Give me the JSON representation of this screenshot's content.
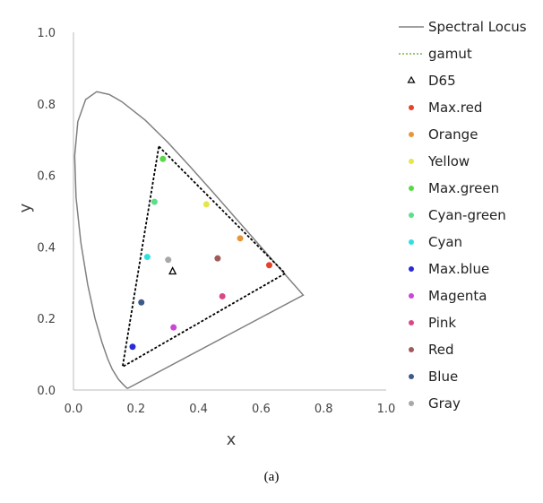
{
  "chart_data": {
    "type": "scatter",
    "xlabel": "x",
    "ylabel": "y",
    "xlim": [
      0,
      1.0
    ],
    "ylim": [
      0,
      1.0
    ],
    "xticks": [
      "0.0",
      "0.2",
      "0.4",
      "0.6",
      "0.8",
      "1.0"
    ],
    "yticks": [
      "0.0",
      "0.2",
      "0.4",
      "0.6",
      "0.8",
      "1.0"
    ],
    "grid": false,
    "legend_placement": "right",
    "caption": "(a)",
    "spectral_locus": {
      "name": "Spectral Locus",
      "color": "#808080",
      "points": [
        [
          0.1741,
          0.005
        ],
        [
          0.1714,
          0.0051
        ],
        [
          0.1644,
          0.0109
        ],
        [
          0.1566,
          0.0177
        ],
        [
          0.144,
          0.0297
        ],
        [
          0.1241,
          0.0578
        ],
        [
          0.1096,
          0.0868
        ],
        [
          0.0913,
          0.1327
        ],
        [
          0.0687,
          0.2007
        ],
        [
          0.0454,
          0.295
        ],
        [
          0.0235,
          0.4127
        ],
        [
          0.0082,
          0.5384
        ],
        [
          0.0039,
          0.6548
        ],
        [
          0.0139,
          0.7502
        ],
        [
          0.0389,
          0.812
        ],
        [
          0.0743,
          0.8338
        ],
        [
          0.1142,
          0.8262
        ],
        [
          0.1547,
          0.8059
        ],
        [
          0.2296,
          0.7543
        ],
        [
          0.3016,
          0.6923
        ],
        [
          0.3731,
          0.6245
        ],
        [
          0.4441,
          0.5547
        ],
        [
          0.5125,
          0.4866
        ],
        [
          0.5752,
          0.4242
        ],
        [
          0.627,
          0.3725
        ],
        [
          0.6915,
          0.3083
        ],
        [
          0.719,
          0.2809
        ],
        [
          0.7347,
          0.2653
        ]
      ]
    },
    "gamut": {
      "name": "gamut",
      "color": "#000000",
      "legend_color": "#7cb342",
      "points": [
        [
          0.273,
          0.681
        ],
        [
          0.677,
          0.326
        ],
        [
          0.157,
          0.065
        ]
      ]
    },
    "white_point": {
      "name": "D65",
      "x": 0.317,
      "y": 0.332
    },
    "series": [
      {
        "name": "Max.red",
        "x": 0.626,
        "y": 0.349,
        "color": "#e8412a"
      },
      {
        "name": "Orange",
        "x": 0.533,
        "y": 0.424,
        "color": "#e8963a"
      },
      {
        "name": "Yellow",
        "x": 0.425,
        "y": 0.519,
        "color": "#e6e64a"
      },
      {
        "name": "Max.green",
        "x": 0.286,
        "y": 0.646,
        "color": "#5ad84a"
      },
      {
        "name": "Cyan-green",
        "x": 0.259,
        "y": 0.526,
        "color": "#5ae08a"
      },
      {
        "name": "Cyan",
        "x": 0.236,
        "y": 0.372,
        "color": "#2ee0e0"
      },
      {
        "name": "Max.blue",
        "x": 0.189,
        "y": 0.121,
        "color": "#2a2ad8"
      },
      {
        "name": "Magenta",
        "x": 0.32,
        "y": 0.175,
        "color": "#cc44d8"
      },
      {
        "name": "Pink",
        "x": 0.476,
        "y": 0.262,
        "color": "#d84888"
      },
      {
        "name": "Red",
        "x": 0.461,
        "y": 0.368,
        "color": "#a05a58"
      },
      {
        "name": "Blue",
        "x": 0.217,
        "y": 0.245,
        "color": "#3e5a8a"
      },
      {
        "name": "Gray",
        "x": 0.303,
        "y": 0.364,
        "color": "#a8a8a8"
      }
    ]
  }
}
